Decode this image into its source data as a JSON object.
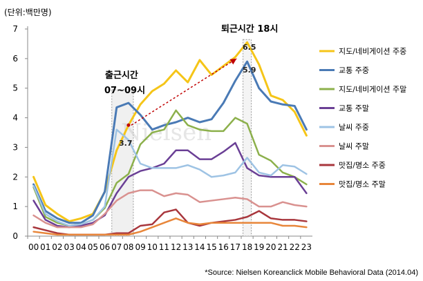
{
  "chart_data": {
    "type": "line",
    "unit_label": "(단위:백만명)",
    "categories": [
      "00",
      "01",
      "02",
      "03",
      "04",
      "05",
      "06",
      "07",
      "08",
      "09",
      "10",
      "11",
      "12",
      "13",
      "14",
      "15",
      "16",
      "17",
      "18",
      "19",
      "20",
      "21",
      "22",
      "23"
    ],
    "ylim": [
      0,
      7
    ],
    "yticks": [
      0,
      1,
      2,
      3,
      4,
      5,
      6,
      7
    ],
    "legend_position": "right",
    "series": [
      {
        "name": "지도/네비게이션 주중",
        "color": "#f5c518",
        "width": 3,
        "values": [
          2.0,
          1.05,
          0.75,
          0.5,
          0.6,
          0.75,
          1.5,
          2.9,
          3.75,
          4.45,
          4.9,
          5.15,
          5.6,
          5.2,
          5.95,
          5.45,
          5.75,
          6.05,
          6.55,
          5.8,
          4.75,
          4.6,
          4.2,
          3.4
        ]
      },
      {
        "name": "교통 주중",
        "color": "#4a7ab5",
        "width": 3,
        "values": [
          1.75,
          0.85,
          0.6,
          0.45,
          0.45,
          0.7,
          1.5,
          4.35,
          4.5,
          4.1,
          3.6,
          3.75,
          3.85,
          4.0,
          3.85,
          3.95,
          4.5,
          5.25,
          5.9,
          5.0,
          4.55,
          4.45,
          4.4,
          3.6
        ]
      },
      {
        "name": "지도/네비게이션 주말",
        "color": "#8cb04b",
        "width": 2.5,
        "values": [
          1.65,
          0.65,
          0.45,
          0.35,
          0.4,
          0.55,
          0.95,
          1.8,
          2.1,
          3.1,
          3.5,
          3.6,
          4.25,
          3.75,
          3.6,
          3.55,
          3.55,
          4.0,
          3.8,
          2.75,
          2.55,
          2.15,
          2.0,
          1.75
        ]
      },
      {
        "name": "교통 주말",
        "color": "#6a3f95",
        "width": 2.5,
        "values": [
          1.2,
          0.55,
          0.35,
          0.3,
          0.35,
          0.45,
          0.7,
          1.45,
          2.0,
          2.2,
          2.3,
          2.45,
          2.9,
          2.9,
          2.6,
          2.6,
          2.85,
          3.15,
          2.3,
          2.05,
          2.0,
          2.0,
          2.0,
          1.45
        ]
      },
      {
        "name": "날씨 주중",
        "color": "#9ec3e4",
        "width": 2.5,
        "values": [
          1.7,
          0.75,
          0.5,
          0.35,
          0.4,
          0.55,
          1.0,
          3.6,
          3.25,
          2.45,
          2.3,
          2.3,
          2.3,
          2.4,
          2.25,
          2.0,
          2.05,
          2.15,
          2.65,
          2.15,
          2.05,
          2.4,
          2.35,
          2.1
        ]
      },
      {
        "name": "날씨 주말",
        "color": "#d9918f",
        "width": 2.5,
        "values": [
          0.7,
          0.45,
          0.3,
          0.3,
          0.3,
          0.4,
          0.75,
          1.2,
          1.45,
          1.55,
          1.55,
          1.35,
          1.45,
          1.4,
          1.15,
          1.2,
          1.25,
          1.3,
          1.25,
          1.0,
          1.0,
          1.15,
          1.05,
          1.0
        ]
      },
      {
        "name": "맛집/명소 주중",
        "color": "#a8363c",
        "width": 2.5,
        "values": [
          0.3,
          0.2,
          0.1,
          0.05,
          0.05,
          0.05,
          0.05,
          0.1,
          0.1,
          0.35,
          0.4,
          0.8,
          0.9,
          0.45,
          0.35,
          0.45,
          0.5,
          0.55,
          0.65,
          0.85,
          0.6,
          0.55,
          0.55,
          0.5
        ]
      },
      {
        "name": "맛집/명소 주말",
        "color": "#e8863a",
        "width": 2.5,
        "values": [
          0.15,
          0.1,
          0.05,
          0.05,
          0.05,
          0.05,
          0.05,
          0.05,
          0.05,
          0.15,
          0.3,
          0.45,
          0.6,
          0.45,
          0.4,
          0.45,
          0.45,
          0.45,
          0.45,
          0.45,
          0.45,
          0.35,
          0.35,
          0.3
        ]
      }
    ],
    "annotations": {
      "morning_title": "출근시간",
      "morning_range": "07~09시",
      "evening_title": "퇴근시간  18시",
      "label_37": "3.7",
      "label_65": "6.5",
      "label_59": "5.9"
    },
    "watermark": "Nielsen",
    "source": "*Source: Nielsen Koreanclick Mobile Behavioral Data (2014.04)"
  }
}
